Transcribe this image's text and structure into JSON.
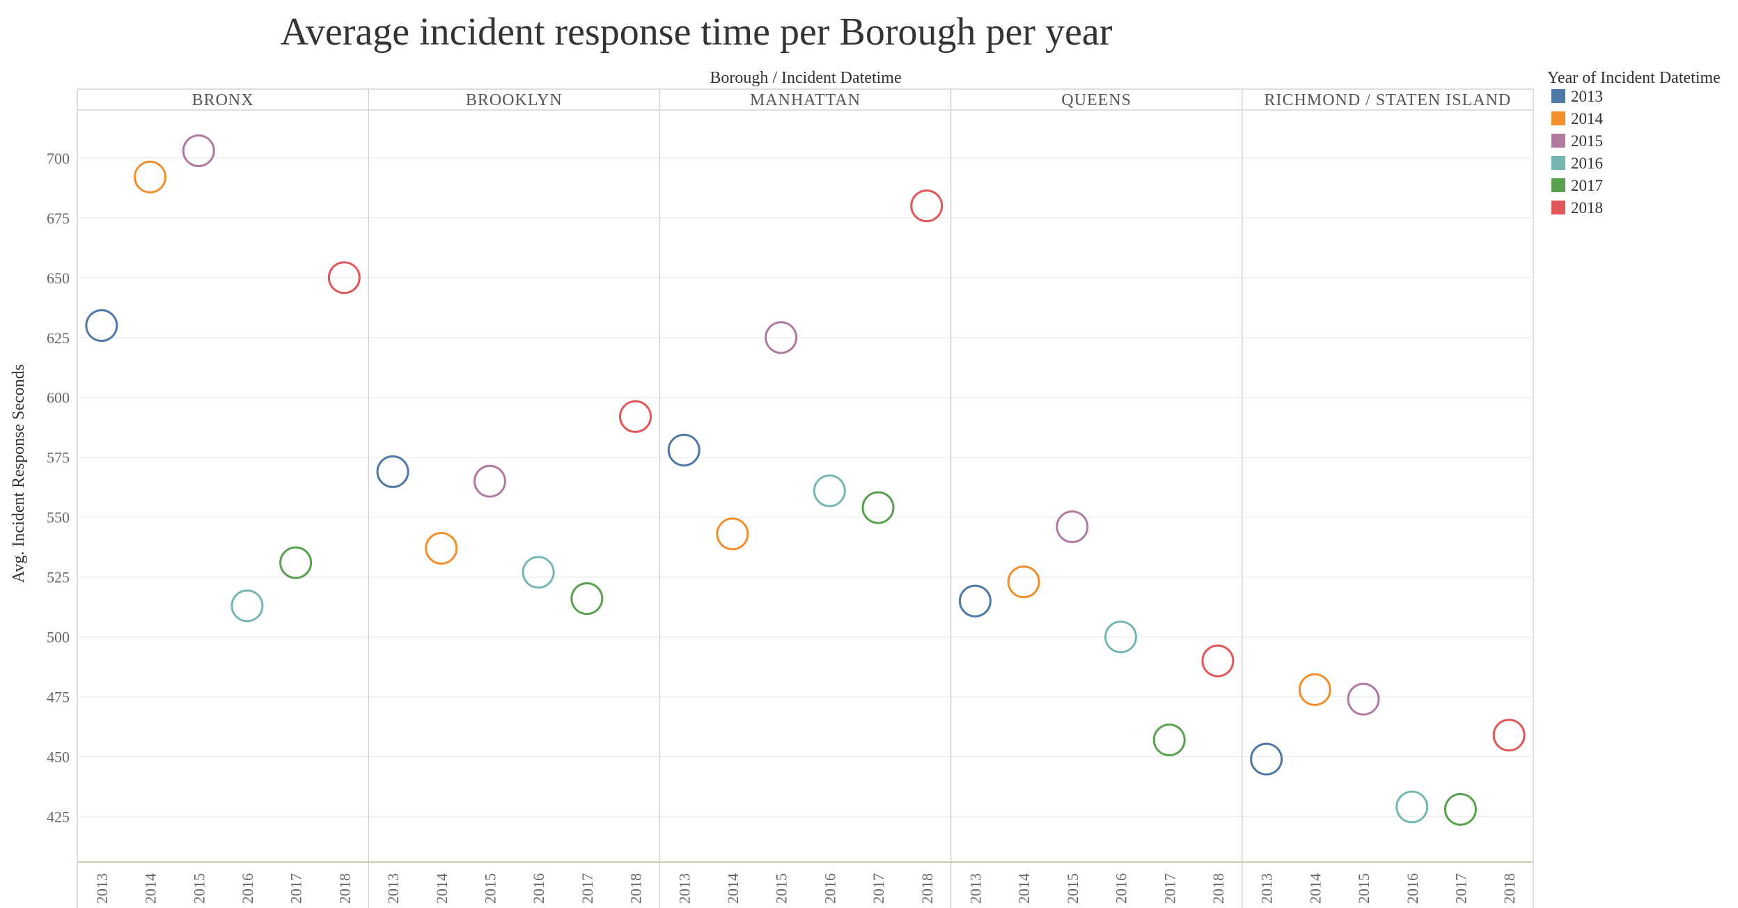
{
  "chart_data": {
    "type": "scatter",
    "title": "Average incident response time per Borough per year",
    "column_header": "Borough  /  Incident Datetime",
    "ylabel": "Avg. Incident Response Seconds",
    "ylim": [
      406,
      720
    ],
    "yticks": [
      425,
      450,
      475,
      500,
      525,
      550,
      575,
      600,
      625,
      650,
      675,
      700
    ],
    "marker": "open-circle",
    "grid": true,
    "legend_position": "right",
    "legend_title": "Year of Incident Datetime",
    "years": [
      "2013",
      "2014",
      "2015",
      "2016",
      "2017",
      "2018"
    ],
    "year_colors": [
      "#4e79a7",
      "#f28e2b",
      "#b07aa1",
      "#76b7b2",
      "#59a14f",
      "#e15759"
    ],
    "panels": [
      {
        "name": "BRONX",
        "values": [
          630,
          692,
          703,
          513,
          531,
          650
        ]
      },
      {
        "name": "BROOKLYN",
        "values": [
          569,
          537,
          565,
          527,
          516,
          592
        ]
      },
      {
        "name": "MANHATTAN",
        "values": [
          578,
          543,
          625,
          561,
          554,
          680
        ]
      },
      {
        "name": "QUEENS",
        "values": [
          515,
          523,
          546,
          500,
          457,
          490
        ]
      },
      {
        "name": "RICHMOND / STATEN ISLAND",
        "values": [
          449,
          478,
          474,
          429,
          428,
          459
        ]
      }
    ]
  }
}
